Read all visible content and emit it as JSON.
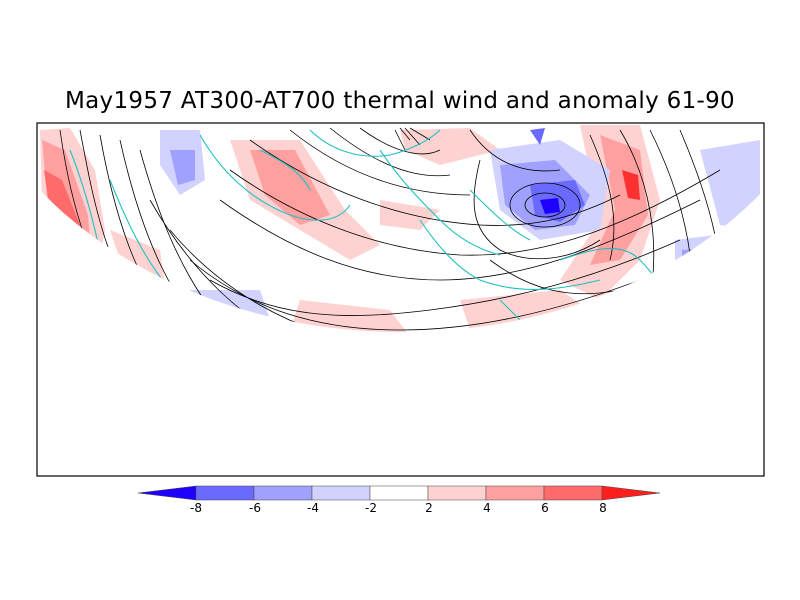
{
  "title": "May1957 AT300-AT700 thermal wind and anomaly 61-90",
  "colorbar": {
    "labels": [
      "-8",
      "-6",
      "-4",
      "-2",
      "2",
      "4",
      "6",
      "8"
    ],
    "colors": [
      "#1e00ff",
      "#6a6aff",
      "#a0a0ff",
      "#d2d2ff",
      "#ffffff",
      "#ffd2d2",
      "#ffa0a0",
      "#ff6a6a",
      "#ff1e1e"
    ]
  },
  "colors": {
    "coastline": "#20c0c0",
    "streamline": "#000000",
    "frame": "#000000"
  }
}
